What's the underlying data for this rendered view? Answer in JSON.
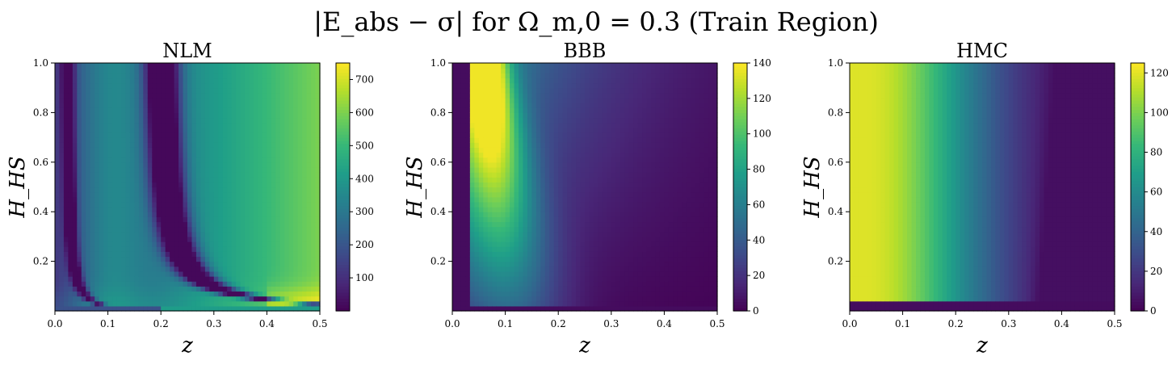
{
  "figure": {
    "title": "|E_abs − σ| for Ω_m,0 = 0.3 (Train Region)"
  },
  "colormap": [
    "#440154",
    "#482878",
    "#3e4989",
    "#31688e",
    "#26828e",
    "#1f9e89",
    "#35b779",
    "#6ece58",
    "#b5de2b",
    "#fde725"
  ],
  "chart_data": [
    {
      "type": "heatmap",
      "title": "NLM",
      "xlabel": "z",
      "ylabel": "H_HS",
      "xlim": [
        0.0,
        0.5
      ],
      "ylim": [
        0.0,
        1.0
      ],
      "xticks": [
        "0.0",
        "0.1",
        "0.2",
        "0.3",
        "0.4",
        "0.5"
      ],
      "yticks": [
        "0.2",
        "0.4",
        "0.6",
        "0.8",
        "1.0"
      ],
      "colorbar": {
        "min": 0,
        "max": 750,
        "ticks": [
          "100",
          "200",
          "300",
          "400",
          "500",
          "600",
          "700"
        ]
      },
      "grid": false
    },
    {
      "type": "heatmap",
      "title": "BBB",
      "xlabel": "z",
      "ylabel": "H_HS",
      "xlim": [
        0.0,
        0.5
      ],
      "ylim": [
        0.0,
        1.0
      ],
      "xticks": [
        "0.0",
        "0.1",
        "0.2",
        "0.3",
        "0.4",
        "0.5"
      ],
      "yticks": [
        "0.2",
        "0.4",
        "0.6",
        "0.8",
        "1.0"
      ],
      "colorbar": {
        "min": 0,
        "max": 140,
        "ticks": [
          "0",
          "20",
          "40",
          "60",
          "80",
          "100",
          "120",
          "140"
        ]
      },
      "grid": false
    },
    {
      "type": "heatmap",
      "title": "HMC",
      "xlabel": "z",
      "ylabel": "H_HS",
      "xlim": [
        0.0,
        0.5
      ],
      "ylim": [
        0.0,
        1.0
      ],
      "xticks": [
        "0.0",
        "0.1",
        "0.2",
        "0.3",
        "0.4",
        "0.5"
      ],
      "yticks": [
        "0.2",
        "0.4",
        "0.6",
        "0.8",
        "1.0"
      ],
      "colorbar": {
        "min": 0,
        "max": 125,
        "ticks": [
          "0",
          "20",
          "40",
          "60",
          "80",
          "100",
          "120"
        ]
      },
      "grid": false
    }
  ]
}
